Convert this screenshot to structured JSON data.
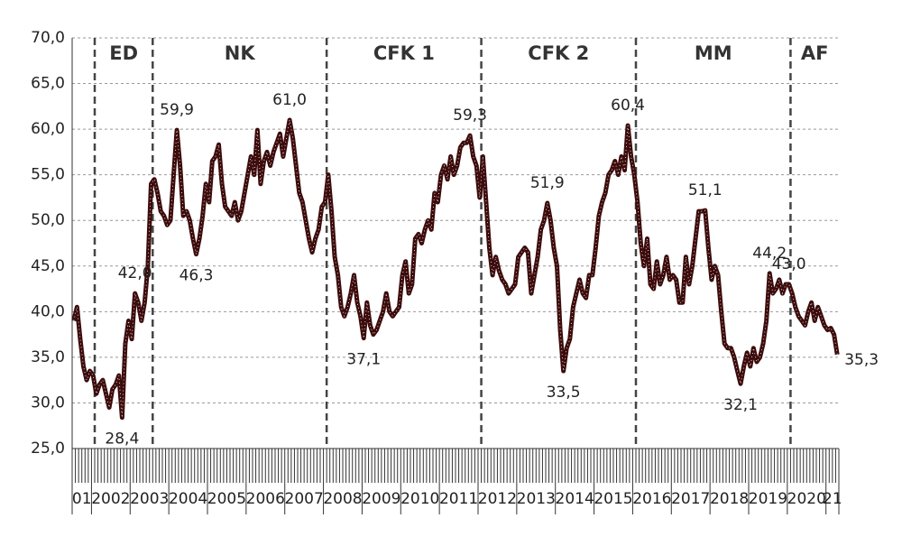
{
  "chart_data": {
    "type": "line",
    "periods": [
      "ED",
      "NK",
      "CFK 1",
      "CFK 2",
      "MM",
      "AF"
    ],
    "categories": [
      null,
      null,
      null,
      "01",
      null,
      null,
      null,
      null,
      null,
      null,
      null,
      null,
      "2002",
      null,
      null,
      null,
      null,
      null,
      null,
      null,
      null,
      null,
      null,
      null,
      "2003",
      null,
      null,
      null,
      null,
      null,
      null,
      null,
      null,
      null,
      null,
      null,
      "2004",
      null,
      null,
      null,
      null,
      null,
      null,
      null,
      null,
      null,
      null,
      null,
      "2005",
      null,
      null,
      null,
      null,
      null,
      null,
      null,
      null,
      null,
      null,
      null,
      "2006",
      null,
      null,
      null,
      null,
      null,
      null,
      null,
      null,
      null,
      null,
      null,
      "2007",
      null,
      null,
      null,
      null,
      null,
      null,
      null,
      null,
      null,
      null,
      null,
      "2008",
      null,
      null,
      null,
      null,
      null,
      null,
      null,
      null,
      null,
      null,
      null,
      "2009",
      null,
      null,
      null,
      null,
      null,
      null,
      null,
      null,
      null,
      null,
      null,
      "2010",
      null,
      null,
      null,
      null,
      null,
      null,
      null,
      null,
      null,
      null,
      null,
      "2011",
      null,
      null,
      null,
      null,
      null,
      null,
      null,
      null,
      null,
      null,
      null,
      "2012",
      null,
      null,
      null,
      null,
      null,
      null,
      null,
      null,
      null,
      null,
      null,
      "2013",
      null,
      null,
      null,
      null,
      null,
      null,
      null,
      null,
      null,
      null,
      null,
      "2014",
      null,
      null,
      null,
      null,
      null,
      null,
      null,
      null,
      null,
      null,
      null,
      "2015",
      null,
      null,
      null,
      null,
      null,
      null,
      null,
      null,
      null,
      null,
      null,
      "2016",
      null,
      null,
      null,
      null,
      null,
      null,
      null,
      null,
      null,
      null,
      null,
      "2017",
      null,
      null,
      null,
      null,
      null,
      null,
      null,
      null,
      null,
      null,
      null,
      "2018",
      null,
      null,
      null,
      null,
      null,
      null,
      null,
      null,
      null,
      null,
      null,
      "2019",
      null,
      null,
      null,
      null,
      null,
      null,
      null,
      null,
      null,
      null,
      null,
      "2020",
      null,
      null,
      null,
      null,
      null,
      null,
      null,
      "21",
      null
    ],
    "series": [
      {
        "color": "#3d0c0c",
        "values": [
          39,
          40.5,
          37,
          34,
          32.5,
          33.5,
          33,
          31,
          32,
          32.5,
          31,
          29.5,
          31.5,
          32,
          33,
          28.4,
          36.5,
          39,
          37,
          42,
          41,
          39,
          41,
          45,
          54,
          54.5,
          53,
          51,
          50.5,
          49.5,
          50,
          55,
          59.9,
          56,
          50.5,
          51,
          50,
          48,
          46.3,
          48,
          50.5,
          54,
          52,
          56.5,
          57,
          58.3,
          54,
          51.5,
          51,
          50.5,
          52,
          50,
          51,
          53,
          55,
          57,
          55,
          59.9,
          54,
          56.5,
          57.5,
          56,
          57.5,
          58.5,
          59.5,
          57,
          59,
          61,
          59,
          56,
          53,
          52,
          50,
          48,
          46.5,
          48,
          49,
          51.5,
          52,
          55,
          51,
          46,
          44,
          40.5,
          39.5,
          40.5,
          42,
          44,
          41,
          39.5,
          37.1,
          41,
          38.5,
          37.5,
          38,
          39,
          40,
          42,
          40,
          39.5,
          40,
          40.5,
          44,
          45.5,
          42,
          43,
          48,
          48.5,
          47.5,
          49,
          50,
          49,
          53,
          52,
          55,
          56,
          54.5,
          57,
          55,
          56,
          58,
          58.5,
          58.5,
          59.3,
          57,
          56,
          52.5,
          57,
          52,
          47,
          44,
          46,
          44.5,
          43.5,
          43,
          42,
          42.5,
          43,
          46,
          46.5,
          47,
          46.5,
          42,
          44,
          46,
          49,
          50,
          51.9,
          50,
          47,
          45,
          38,
          33.5,
          36,
          37,
          40.5,
          42,
          43.5,
          42,
          41.5,
          44,
          44,
          47,
          50.5,
          52,
          53,
          55,
          55.5,
          56.5,
          55,
          57,
          55.5,
          60.4,
          57,
          55,
          52,
          47.5,
          45,
          48,
          43,
          42.5,
          45.5,
          43,
          44,
          46,
          43.5,
          44,
          43.5,
          41,
          41,
          46,
          43,
          45,
          48,
          51,
          51,
          51.1,
          47,
          43.5,
          45,
          44,
          40,
          36.5,
          36,
          36,
          35,
          33.5,
          32.1,
          34,
          35.5,
          34,
          36,
          34.5,
          35,
          36.5,
          39,
          44.2,
          42,
          42.5,
          43.5,
          42,
          43,
          43,
          42,
          40.5,
          39.5,
          39,
          38.5,
          40,
          41,
          39,
          40.5,
          39.5,
          38.5,
          38,
          38.2,
          37.5,
          35.3
        ],
        "value_labels": [
          null,
          null,
          null,
          null,
          null,
          null,
          null,
          null,
          null,
          null,
          null,
          null,
          null,
          null,
          null,
          "28,4",
          null,
          null,
          null,
          "42,0",
          null,
          null,
          null,
          null,
          null,
          null,
          null,
          null,
          null,
          null,
          null,
          null,
          "59,9",
          null,
          null,
          null,
          null,
          null,
          "46,3",
          null,
          null,
          null,
          null,
          null,
          null,
          null,
          null,
          null,
          null,
          null,
          null,
          null,
          null,
          null,
          null,
          null,
          null,
          null,
          null,
          null,
          null,
          null,
          null,
          null,
          null,
          null,
          null,
          "61,0",
          null,
          null,
          null,
          null,
          null,
          null,
          null,
          null,
          null,
          null,
          null,
          null,
          null,
          null,
          null,
          null,
          null,
          null,
          null,
          null,
          null,
          null,
          "37,1",
          null,
          null,
          null,
          null,
          null,
          null,
          null,
          null,
          null,
          null,
          null,
          null,
          null,
          null,
          null,
          null,
          null,
          null,
          null,
          null,
          null,
          null,
          null,
          null,
          null,
          null,
          null,
          null,
          null,
          null,
          null,
          null,
          "59,3",
          null,
          null,
          null,
          null,
          null,
          null,
          null,
          null,
          null,
          null,
          null,
          null,
          null,
          null,
          null,
          null,
          null,
          null,
          null,
          null,
          null,
          null,
          null,
          "51,9",
          null,
          null,
          null,
          null,
          "33,5",
          null,
          null,
          null,
          null,
          null,
          null,
          null,
          null,
          null,
          null,
          null,
          null,
          null,
          null,
          null,
          null,
          null,
          null,
          null,
          "60,4",
          null,
          null,
          null,
          null,
          null,
          null,
          null,
          null,
          null,
          null,
          null,
          null,
          null,
          null,
          null,
          null,
          null,
          null,
          null,
          null,
          null,
          null,
          null,
          "51,1",
          null,
          null,
          null,
          null,
          null,
          null,
          null,
          null,
          null,
          null,
          "32,1",
          null,
          null,
          null,
          null,
          null,
          null,
          null,
          null,
          "44,2",
          null,
          null,
          null,
          null,
          null,
          "43,0",
          null,
          null,
          null,
          null,
          null,
          null,
          null,
          null,
          null,
          null,
          null,
          null,
          null,
          null,
          "35,3"
        ]
      }
    ],
    "ylim": [
      25,
      70
    ],
    "yticks": [
      {
        "value": 25,
        "label": "25,0"
      },
      {
        "value": 30,
        "label": "30,0"
      },
      {
        "value": 35,
        "label": "35,0"
      },
      {
        "value": 40,
        "label": "40,0"
      },
      {
        "value": 45,
        "label": "45,0"
      },
      {
        "value": 50,
        "label": "50,0"
      },
      {
        "value": 55,
        "label": "55,0"
      },
      {
        "value": 60,
        "label": "60,0"
      },
      {
        "value": 65,
        "label": "65,0"
      },
      {
        "value": 70,
        "label": "70,0"
      }
    ],
    "grid": true
  }
}
